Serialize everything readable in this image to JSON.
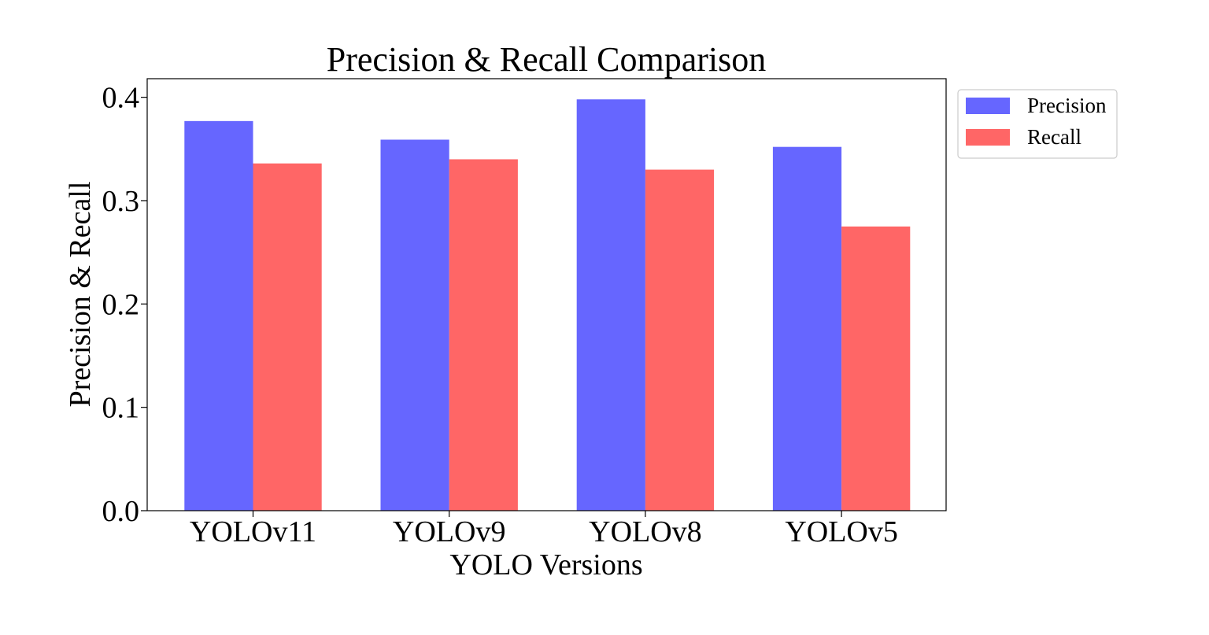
{
  "chart_data": {
    "type": "bar",
    "title": "Precision & Recall Comparison",
    "xlabel": "YOLO Versions",
    "ylabel": "Precision & Recall",
    "categories": [
      "YOLOv11",
      "YOLOv9",
      "YOLOv8",
      "YOLOv5"
    ],
    "series": [
      {
        "name": "Precision",
        "color": "#6666ff",
        "values": [
          0.377,
          0.359,
          0.398,
          0.352
        ]
      },
      {
        "name": "Recall",
        "color": "#ff6666",
        "values": [
          0.336,
          0.34,
          0.33,
          0.275
        ]
      }
    ],
    "ylim": [
      0,
      0.418
    ],
    "yticks": [
      0.0,
      0.1,
      0.2,
      0.3,
      0.4
    ],
    "ytick_labels": [
      "0.0",
      "0.1",
      "0.2",
      "0.3",
      "0.4"
    ],
    "grid": false,
    "legend_position": "outside-upper-right"
  }
}
